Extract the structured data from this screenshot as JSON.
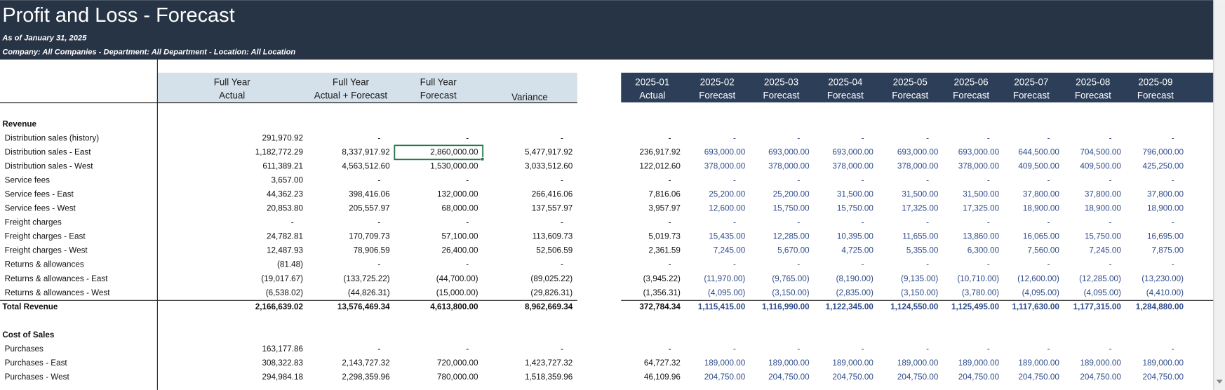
{
  "header": {
    "title": "Profit and Loss - Forecast",
    "as_of": "As of January 31, 2025",
    "filters": "Company: All Companies - Department: All Department - Location: All Location"
  },
  "columns": [
    [
      "Full Year",
      "Actual"
    ],
    [
      "Full Year",
      "Actual + Forecast"
    ],
    [
      "Full Year",
      "Forecast"
    ],
    [
      "Variance"
    ],
    [
      "2025-01",
      "Actual"
    ],
    [
      "2025-02",
      "Forecast"
    ],
    [
      "2025-03",
      "Forecast"
    ],
    [
      "2025-04",
      "Forecast"
    ],
    [
      "2025-05",
      "Forecast"
    ],
    [
      "2025-06",
      "Forecast"
    ],
    [
      "2025-07",
      "Forecast"
    ],
    [
      "2025-08",
      "Forecast"
    ],
    [
      "2025-09",
      "Forecast"
    ]
  ],
  "sections": [
    {
      "title": "Revenue",
      "rows": [
        {
          "label": "Distribution sales (history)",
          "values": [
            "291,970.92",
            "-",
            "-",
            "-",
            "-",
            "-",
            "-",
            "-",
            "-",
            "-",
            "-",
            "-",
            "-"
          ]
        },
        {
          "label": "Distribution sales - East",
          "values": [
            "1,182,772.29",
            "8,337,917.92",
            "2,860,000.00",
            "5,477,917.92",
            "236,917.92",
            "693,000.00",
            "693,000.00",
            "693,000.00",
            "693,000.00",
            "693,000.00",
            "644,500.00",
            "704,500.00",
            "796,000.00"
          ]
        },
        {
          "label": "Distribution sales - West",
          "values": [
            "611,389.21",
            "4,563,512.60",
            "1,530,000.00",
            "3,033,512.60",
            "122,012.60",
            "378,000.00",
            "378,000.00",
            "378,000.00",
            "378,000.00",
            "378,000.00",
            "409,500.00",
            "409,500.00",
            "425,250.00"
          ]
        },
        {
          "label": "Service fees",
          "values": [
            "3,657.00",
            "-",
            "-",
            "-",
            "-",
            "-",
            "-",
            "-",
            "-",
            "-",
            "-",
            "-",
            "-"
          ]
        },
        {
          "label": "Service fees - East",
          "values": [
            "44,362.23",
            "398,416.06",
            "132,000.00",
            "266,416.06",
            "7,816.06",
            "25,200.00",
            "25,200.00",
            "31,500.00",
            "31,500.00",
            "31,500.00",
            "37,800.00",
            "37,800.00",
            "37,800.00"
          ]
        },
        {
          "label": "Service fees - West",
          "values": [
            "20,853.80",
            "205,557.97",
            "68,000.00",
            "137,557.97",
            "3,957.97",
            "12,600.00",
            "15,750.00",
            "15,750.00",
            "17,325.00",
            "17,325.00",
            "18,900.00",
            "18,900.00",
            "18,900.00"
          ]
        },
        {
          "label": "Freight charges",
          "values": [
            "-",
            "-",
            "-",
            "-",
            "-",
            "-",
            "-",
            "-",
            "-",
            "-",
            "-",
            "-",
            "-"
          ]
        },
        {
          "label": "Freight charges - East",
          "values": [
            "24,782.81",
            "170,709.73",
            "57,100.00",
            "113,609.73",
            "5,019.73",
            "15,435.00",
            "12,285.00",
            "10,395.00",
            "11,655.00",
            "13,860.00",
            "16,065.00",
            "15,750.00",
            "16,695.00"
          ]
        },
        {
          "label": "Freight charges - West",
          "values": [
            "12,487.93",
            "78,906.59",
            "26,400.00",
            "52,506.59",
            "2,361.59",
            "7,245.00",
            "5,670.00",
            "4,725.00",
            "5,355.00",
            "6,300.00",
            "7,560.00",
            "7,245.00",
            "7,875.00"
          ]
        },
        {
          "label": "Returns & allowances",
          "values": [
            "(81.48)",
            "-",
            "-",
            "-",
            "-",
            "-",
            "-",
            "-",
            "-",
            "-",
            "-",
            "-",
            "-"
          ]
        },
        {
          "label": "Returns & allowances - East",
          "values": [
            "(19,017.67)",
            "(133,725.22)",
            "(44,700.00)",
            "(89,025.22)",
            "(3,945.22)",
            "(11,970.00)",
            "(9,765.00)",
            "(8,190.00)",
            "(9,135.00)",
            "(10,710.00)",
            "(12,600.00)",
            "(12,285.00)",
            "(13,230.00)"
          ]
        },
        {
          "label": "Returns & allowances - West",
          "values": [
            "(6,538.02)",
            "(44,826.31)",
            "(15,000.00)",
            "(29,826.31)",
            "(1,356.31)",
            "(4,095.00)",
            "(3,150.00)",
            "(2,835.00)",
            "(3,150.00)",
            "(3,780.00)",
            "(4,095.00)",
            "(4,095.00)",
            "(4,410.00)"
          ]
        }
      ],
      "total": {
        "label": "Total Revenue",
        "values": [
          "2,166,639.02",
          "13,576,469.34",
          "4,613,800.00",
          "8,962,669.34",
          "372,784.34",
          "1,115,415.00",
          "1,116,990.00",
          "1,122,345.00",
          "1,124,550.00",
          "1,125,495.00",
          "1,117,630.00",
          "1,177,315.00",
          "1,284,880.00"
        ]
      }
    },
    {
      "title": "Cost of Sales",
      "rows": [
        {
          "label": "Purchases",
          "values": [
            "163,177.86",
            "-",
            "-",
            "-",
            "-",
            "-",
            "-",
            "-",
            "-",
            "-",
            "-",
            "-",
            "-"
          ]
        },
        {
          "label": "Purchases - East",
          "values": [
            "308,322.83",
            "2,143,727.32",
            "720,000.00",
            "1,423,727.32",
            "64,727.32",
            "189,000.00",
            "189,000.00",
            "189,000.00",
            "189,000.00",
            "189,000.00",
            "189,000.00",
            "189,000.00",
            "189,000.00"
          ]
        },
        {
          "label": "Purchases - West",
          "values": [
            "294,984.18",
            "2,298,359.96",
            "780,000.00",
            "1,518,359.96",
            "46,109.96",
            "204,750.00",
            "204,750.00",
            "204,750.00",
            "204,750.00",
            "204,750.00",
            "204,750.00",
            "204,750.00",
            "204,750.00"
          ]
        }
      ]
    }
  ]
}
